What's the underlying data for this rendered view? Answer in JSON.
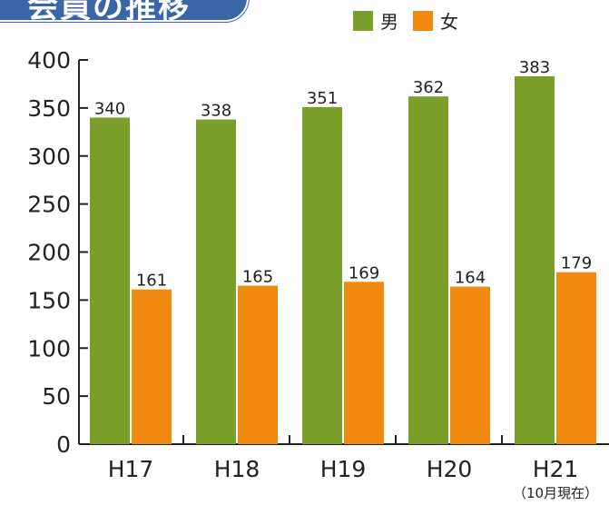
{
  "title": "会員の推移",
  "colors": {
    "male": "#7a9e2a",
    "female": "#f0890f",
    "badge": "#3a66a8"
  },
  "legend": [
    {
      "label": "男",
      "color": "#7a9e2a"
    },
    {
      "label": "女",
      "color": "#f0890f"
    }
  ],
  "chart_data": {
    "type": "bar",
    "categories": [
      "H17",
      "H18",
      "H19",
      "H20",
      "H21"
    ],
    "category_note": {
      "index": 4,
      "text": "（10月現在）"
    },
    "series": [
      {
        "name": "男",
        "values": [
          340,
          338,
          351,
          362,
          383
        ]
      },
      {
        "name": "女",
        "values": [
          161,
          165,
          169,
          164,
          179
        ]
      }
    ],
    "ylim": [
      0,
      400
    ],
    "yticks": [
      0,
      50,
      100,
      150,
      200,
      250,
      300,
      350,
      400
    ],
    "grid": false,
    "legend_position": "top-right",
    "xlabel": "",
    "ylabel": ""
  }
}
